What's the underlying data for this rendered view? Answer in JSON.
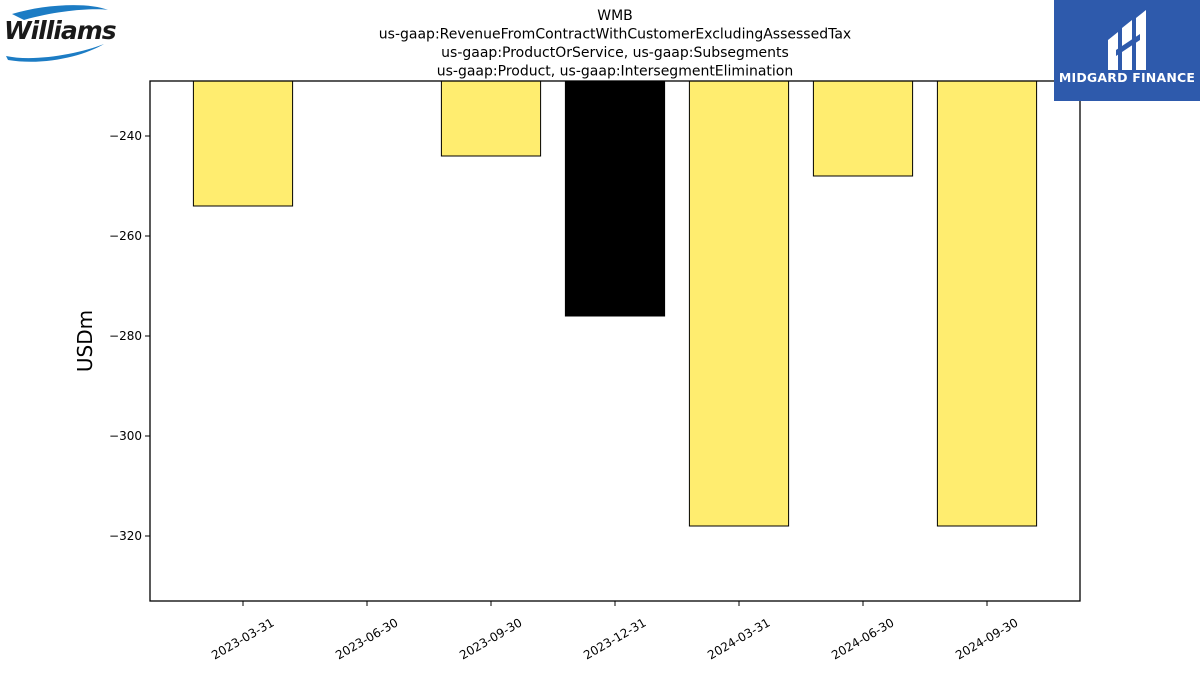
{
  "logos": {
    "left_text": "Williams",
    "right_text": "MIDGARD FINANCE",
    "brand_blue": "#2e5aac",
    "williams_blue": "#1c7cc4"
  },
  "chart_data": {
    "type": "bar",
    "title_lines": [
      "WMB",
      "us-gaap:RevenueFromContractWithCustomerExcludingAssessedTax",
      "us-gaap:ProductOrService, us-gaap:Subsegments",
      "us-gaap:Product, us-gaap:IntersegmentElimination"
    ],
    "ylabel": "USDm",
    "xlabel": "",
    "categories": [
      "2023-03-31",
      "2023-06-30",
      "2023-09-30",
      "2023-12-31",
      "2024-03-31",
      "2024-06-30",
      "2024-09-30"
    ],
    "values": [
      -254,
      null,
      -244,
      -276,
      -318,
      -248,
      -318
    ],
    "bar_colors": [
      "#ffed6f",
      null,
      "#ffed6f",
      "#000000",
      "#ffed6f",
      "#ffed6f",
      "#ffed6f"
    ],
    "ylim": [
      -333,
      -229
    ],
    "yticks": [
      -240,
      -260,
      -280,
      -300,
      -320
    ],
    "ytick_labels": [
      "−240",
      "−260",
      "−280",
      "−300",
      "−320"
    ],
    "grid": false,
    "legend": "none"
  }
}
